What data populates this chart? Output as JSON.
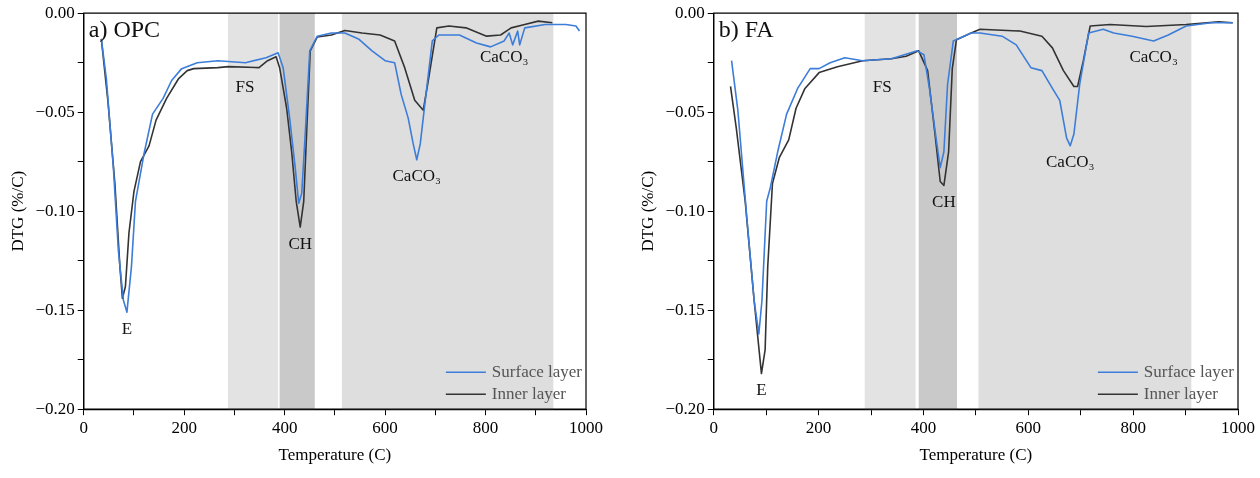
{
  "chart_data": [
    {
      "type": "line",
      "title": "a) OPC",
      "xlabel": "Temperature (C)",
      "ylabel": "DTG (%/C)",
      "xlim": [
        0,
        1000
      ],
      "xticks": [
        0,
        {
          "value": 100,
          "label": null
        },
        200,
        {
          "value": 300,
          "label": null
        },
        400,
        {
          "value": 500,
          "label": null
        },
        600,
        {
          "value": 700,
          "label": null
        },
        800,
        {
          "value": 900,
          "label": null
        },
        1000
      ],
      "ylim": [
        -0.2,
        0
      ],
      "yticks": [
        {
          "value": -0.2,
          "label": "−0.20"
        },
        {
          "value": -0.175,
          "label": null
        },
        {
          "value": -0.15,
          "label": "−0.15"
        },
        {
          "value": -0.125,
          "label": null
        },
        {
          "value": -0.1,
          "label": "−0.10"
        },
        {
          "value": -0.075,
          "label": null
        },
        {
          "value": -0.05,
          "label": "−0.05"
        },
        {
          "value": -0.025,
          "label": null
        },
        {
          "value": 0,
          "label": "0.00"
        }
      ],
      "grid": false,
      "legend": "bottom right",
      "marker": "none",
      "line_style": "solid",
      "bands": [
        {
          "axis": "x",
          "from": 287,
          "to": 387,
          "color": "#e3e3e3",
          "label": "FS"
        },
        {
          "axis": "x",
          "from": 390,
          "to": 460,
          "color": "#c9c9c9"
        },
        {
          "axis": "x",
          "from": 514,
          "to": 935,
          "color": "#dedede"
        }
      ],
      "annotations": [
        {
          "text": "E",
          "x": 86,
          "y": -0.151
        },
        {
          "text": "CH",
          "x": 431,
          "y": -0.108
        },
        {
          "text": "CaCO₃",
          "x": 663,
          "y": -0.074
        },
        {
          "text": "CaCO₃",
          "x": 837,
          "y": -0.014
        }
      ],
      "series": [
        {
          "name": "Surface layer",
          "color": "#3c7dd9",
          "x": [
            35,
            45,
            59,
            69,
            79,
            86,
            95,
            103,
            120,
            137,
            158,
            175,
            195,
            226,
            267,
            322,
            363,
            387,
            397,
            410,
            421,
            428,
            434,
            441,
            450,
            465,
            493,
            520,
            547,
            574,
            600,
            619,
            632,
            646,
            656,
            663,
            670,
            680,
            694,
            707,
            748,
            782,
            810,
            837,
            847,
            854,
            864,
            868,
            878,
            919,
            960,
            980,
            987
          ],
          "values": [
            -0.013,
            -0.033,
            -0.078,
            -0.12,
            -0.145,
            -0.151,
            -0.128,
            -0.095,
            -0.071,
            -0.051,
            -0.043,
            -0.034,
            -0.028,
            -0.025,
            -0.024,
            -0.025,
            -0.0225,
            -0.02,
            -0.0275,
            -0.053,
            -0.078,
            -0.096,
            -0.091,
            -0.061,
            -0.019,
            -0.0116,
            -0.01,
            -0.01,
            -0.013,
            -0.019,
            -0.024,
            -0.025,
            -0.041,
            -0.053,
            -0.066,
            -0.074,
            -0.066,
            -0.044,
            -0.014,
            -0.011,
            -0.011,
            -0.015,
            -0.017,
            -0.014,
            -0.01,
            -0.016,
            -0.009,
            -0.016,
            -0.0074,
            -0.0057,
            -0.0057,
            -0.0065,
            -0.009
          ]
        },
        {
          "name": "Inner layer",
          "color": "#333333",
          "x": [
            35,
            48,
            62,
            72,
            77,
            83,
            90,
            100,
            113,
            130,
            144,
            165,
            189,
            206,
            219,
            267,
            288,
            349,
            366,
            383,
            390,
            404,
            414,
            423,
            431,
            438,
            445,
            451,
            465,
            493,
            520,
            554,
            590,
            619,
            639,
            659,
            676,
            686,
            703,
            727,
            761,
            802,
            830,
            851,
            878,
            905,
            933
          ],
          "values": [
            -0.013,
            -0.044,
            -0.086,
            -0.128,
            -0.144,
            -0.138,
            -0.111,
            -0.09,
            -0.075,
            -0.067,
            -0.054,
            -0.043,
            -0.033,
            -0.029,
            -0.028,
            -0.0275,
            -0.027,
            -0.0275,
            -0.024,
            -0.022,
            -0.0275,
            -0.048,
            -0.07,
            -0.095,
            -0.108,
            -0.095,
            -0.053,
            -0.019,
            -0.012,
            -0.011,
            -0.0087,
            -0.01,
            -0.011,
            -0.014,
            -0.0275,
            -0.044,
            -0.049,
            -0.034,
            -0.0074,
            -0.0065,
            -0.0074,
            -0.0116,
            -0.011,
            -0.0074,
            -0.0057,
            -0.004,
            -0.0048
          ]
        }
      ]
    },
    {
      "type": "line",
      "title": "b) FA",
      "xlabel": "Temperature (C)",
      "ylabel": "DTG (%/C)",
      "xlim": [
        0,
        1000
      ],
      "xticks": [
        0,
        {
          "value": 100,
          "label": null
        },
        200,
        {
          "value": 300,
          "label": null
        },
        400,
        {
          "value": 500,
          "label": null
        },
        600,
        {
          "value": 700,
          "label": null
        },
        800,
        {
          "value": 900,
          "label": null
        },
        1000
      ],
      "ylim": [
        -0.2,
        0
      ],
      "yticks": [
        {
          "value": -0.2,
          "label": "−0.20"
        },
        {
          "value": -0.175,
          "label": null
        },
        {
          "value": -0.15,
          "label": "−0.15"
        },
        {
          "value": -0.125,
          "label": null
        },
        {
          "value": -0.1,
          "label": "−0.10"
        },
        {
          "value": -0.075,
          "label": null
        },
        {
          "value": -0.05,
          "label": "−0.05"
        },
        {
          "value": -0.025,
          "label": null
        },
        {
          "value": 0,
          "label": "0.00"
        }
      ],
      "grid": false,
      "legend": "bottom right",
      "marker": "none",
      "line_style": "solid",
      "bands": [
        {
          "axis": "x",
          "from": 288,
          "to": 385,
          "color": "#e3e3e3",
          "label": "FS"
        },
        {
          "axis": "x",
          "from": 391,
          "to": 464,
          "color": "#c9c9c9"
        },
        {
          "axis": "x",
          "from": 505,
          "to": 911,
          "color": "#dedede"
        }
      ],
      "annotations": [
        {
          "text": "E",
          "x": 91,
          "y": -0.182
        },
        {
          "text": "CH",
          "x": 439,
          "y": -0.087
        },
        {
          "text": "CaCO₃",
          "x": 680,
          "y": -0.067
        },
        {
          "text": "CaCO₃",
          "x": 839,
          "y": -0.014
        }
      ],
      "series": [
        {
          "name": "Surface layer",
          "color": "#3c7dd9",
          "x": [
            34,
            46,
            63,
            77,
            86,
            92,
            101,
            108,
            122,
            139,
            160,
            184,
            201,
            222,
            250,
            284,
            339,
            388,
            401,
            412,
            423,
            432,
            439,
            446,
            457,
            477,
            491,
            508,
            550,
            577,
            605,
            626,
            646,
            660,
            673,
            680,
            687,
            698,
            715,
            743,
            763,
            798,
            839,
            867,
            901,
            949,
            990
          ],
          "values": [
            -0.024,
            -0.049,
            -0.103,
            -0.145,
            -0.162,
            -0.145,
            -0.095,
            -0.088,
            -0.07,
            -0.051,
            -0.038,
            -0.028,
            -0.028,
            -0.025,
            -0.0225,
            -0.024,
            -0.023,
            -0.019,
            -0.021,
            -0.039,
            -0.061,
            -0.078,
            -0.07,
            -0.036,
            -0.014,
            -0.0116,
            -0.01,
            -0.01,
            -0.0116,
            -0.016,
            -0.0275,
            -0.029,
            -0.038,
            -0.044,
            -0.063,
            -0.067,
            -0.061,
            -0.036,
            -0.01,
            -0.0081,
            -0.01,
            -0.0116,
            -0.014,
            -0.011,
            -0.0065,
            -0.0048,
            -0.0048
          ]
        },
        {
          "name": "Inner layer",
          "color": "#333333",
          "x": [
            32,
            43,
            60,
            77,
            91,
            98,
            103,
            112,
            125,
            143,
            157,
            174,
            201,
            236,
            284,
            339,
            367,
            391,
            408,
            422,
            432,
            439,
            448,
            455,
            463,
            491,
            508,
            584,
            626,
            646,
            667,
            687,
            694,
            705,
            718,
            756,
            825,
            901,
            963,
            990
          ],
          "values": [
            -0.037,
            -0.058,
            -0.095,
            -0.145,
            -0.182,
            -0.17,
            -0.128,
            -0.086,
            -0.073,
            -0.064,
            -0.048,
            -0.038,
            -0.03,
            -0.027,
            -0.024,
            -0.023,
            -0.0217,
            -0.019,
            -0.029,
            -0.061,
            -0.085,
            -0.087,
            -0.07,
            -0.028,
            -0.0134,
            -0.01,
            -0.0081,
            -0.009,
            -0.0116,
            -0.0175,
            -0.029,
            -0.037,
            -0.037,
            -0.024,
            -0.0065,
            -0.0057,
            -0.0067,
            -0.0057,
            -0.0044,
            -0.0048
          ]
        }
      ]
    }
  ]
}
